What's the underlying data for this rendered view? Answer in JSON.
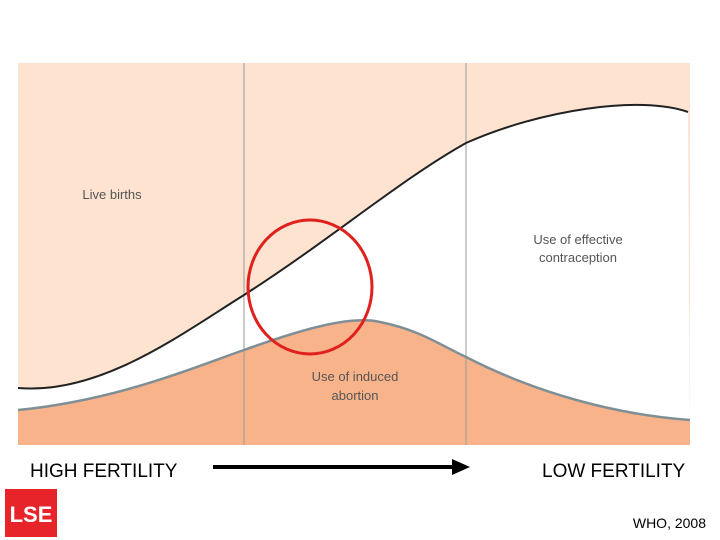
{
  "regions": {
    "live_births": "Live births",
    "contraception": [
      "Use of effective",
      "contraception"
    ],
    "abortion": [
      "Use of induced",
      "abortion"
    ]
  },
  "axis": {
    "left": "HIGH FERTILITY",
    "right": "LOW FERTILITY"
  },
  "logo": "LSE",
  "source": "WHO, 2008"
}
